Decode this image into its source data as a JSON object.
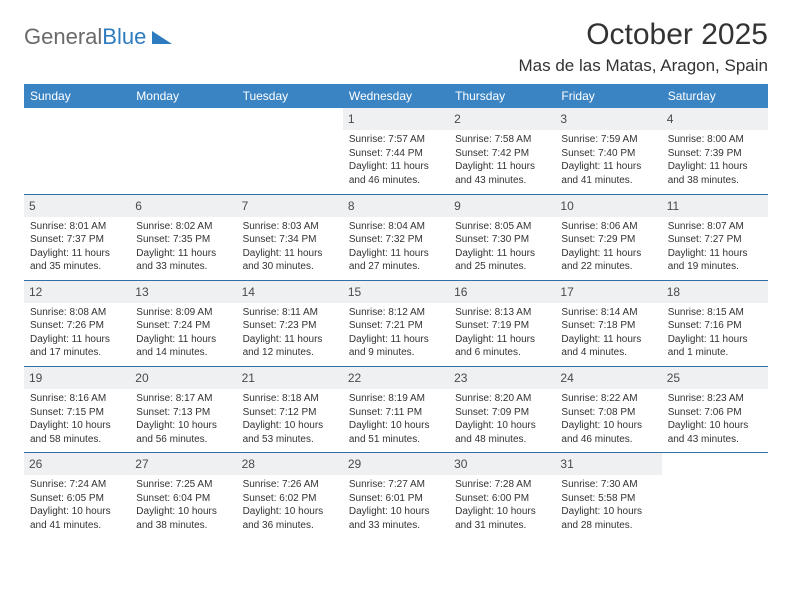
{
  "logo": {
    "text_gray": "General",
    "text_blue": "Blue"
  },
  "header": {
    "month_title": "October 2025",
    "location": "Mas de las Matas, Aragon, Spain"
  },
  "colors": {
    "header_bg": "#3b84c4",
    "header_text": "#ffffff",
    "row_divider": "#2f6fa6",
    "daynum_bg": "#eef0f2",
    "body_text": "#333333"
  },
  "day_headers": [
    "Sunday",
    "Monday",
    "Tuesday",
    "Wednesday",
    "Thursday",
    "Friday",
    "Saturday"
  ],
  "weeks": [
    [
      {
        "blank": true
      },
      {
        "blank": true
      },
      {
        "blank": true
      },
      {
        "day": "1",
        "sunrise": "Sunrise: 7:57 AM",
        "sunset": "Sunset: 7:44 PM",
        "dl1": "Daylight: 11 hours",
        "dl2": "and 46 minutes."
      },
      {
        "day": "2",
        "sunrise": "Sunrise: 7:58 AM",
        "sunset": "Sunset: 7:42 PM",
        "dl1": "Daylight: 11 hours",
        "dl2": "and 43 minutes."
      },
      {
        "day": "3",
        "sunrise": "Sunrise: 7:59 AM",
        "sunset": "Sunset: 7:40 PM",
        "dl1": "Daylight: 11 hours",
        "dl2": "and 41 minutes."
      },
      {
        "day": "4",
        "sunrise": "Sunrise: 8:00 AM",
        "sunset": "Sunset: 7:39 PM",
        "dl1": "Daylight: 11 hours",
        "dl2": "and 38 minutes."
      }
    ],
    [
      {
        "day": "5",
        "sunrise": "Sunrise: 8:01 AM",
        "sunset": "Sunset: 7:37 PM",
        "dl1": "Daylight: 11 hours",
        "dl2": "and 35 minutes."
      },
      {
        "day": "6",
        "sunrise": "Sunrise: 8:02 AM",
        "sunset": "Sunset: 7:35 PM",
        "dl1": "Daylight: 11 hours",
        "dl2": "and 33 minutes."
      },
      {
        "day": "7",
        "sunrise": "Sunrise: 8:03 AM",
        "sunset": "Sunset: 7:34 PM",
        "dl1": "Daylight: 11 hours",
        "dl2": "and 30 minutes."
      },
      {
        "day": "8",
        "sunrise": "Sunrise: 8:04 AM",
        "sunset": "Sunset: 7:32 PM",
        "dl1": "Daylight: 11 hours",
        "dl2": "and 27 minutes."
      },
      {
        "day": "9",
        "sunrise": "Sunrise: 8:05 AM",
        "sunset": "Sunset: 7:30 PM",
        "dl1": "Daylight: 11 hours",
        "dl2": "and 25 minutes."
      },
      {
        "day": "10",
        "sunrise": "Sunrise: 8:06 AM",
        "sunset": "Sunset: 7:29 PM",
        "dl1": "Daylight: 11 hours",
        "dl2": "and 22 minutes."
      },
      {
        "day": "11",
        "sunrise": "Sunrise: 8:07 AM",
        "sunset": "Sunset: 7:27 PM",
        "dl1": "Daylight: 11 hours",
        "dl2": "and 19 minutes."
      }
    ],
    [
      {
        "day": "12",
        "sunrise": "Sunrise: 8:08 AM",
        "sunset": "Sunset: 7:26 PM",
        "dl1": "Daylight: 11 hours",
        "dl2": "and 17 minutes."
      },
      {
        "day": "13",
        "sunrise": "Sunrise: 8:09 AM",
        "sunset": "Sunset: 7:24 PM",
        "dl1": "Daylight: 11 hours",
        "dl2": "and 14 minutes."
      },
      {
        "day": "14",
        "sunrise": "Sunrise: 8:11 AM",
        "sunset": "Sunset: 7:23 PM",
        "dl1": "Daylight: 11 hours",
        "dl2": "and 12 minutes."
      },
      {
        "day": "15",
        "sunrise": "Sunrise: 8:12 AM",
        "sunset": "Sunset: 7:21 PM",
        "dl1": "Daylight: 11 hours",
        "dl2": "and 9 minutes."
      },
      {
        "day": "16",
        "sunrise": "Sunrise: 8:13 AM",
        "sunset": "Sunset: 7:19 PM",
        "dl1": "Daylight: 11 hours",
        "dl2": "and 6 minutes."
      },
      {
        "day": "17",
        "sunrise": "Sunrise: 8:14 AM",
        "sunset": "Sunset: 7:18 PM",
        "dl1": "Daylight: 11 hours",
        "dl2": "and 4 minutes."
      },
      {
        "day": "18",
        "sunrise": "Sunrise: 8:15 AM",
        "sunset": "Sunset: 7:16 PM",
        "dl1": "Daylight: 11 hours",
        "dl2": "and 1 minute."
      }
    ],
    [
      {
        "day": "19",
        "sunrise": "Sunrise: 8:16 AM",
        "sunset": "Sunset: 7:15 PM",
        "dl1": "Daylight: 10 hours",
        "dl2": "and 58 minutes."
      },
      {
        "day": "20",
        "sunrise": "Sunrise: 8:17 AM",
        "sunset": "Sunset: 7:13 PM",
        "dl1": "Daylight: 10 hours",
        "dl2": "and 56 minutes."
      },
      {
        "day": "21",
        "sunrise": "Sunrise: 8:18 AM",
        "sunset": "Sunset: 7:12 PM",
        "dl1": "Daylight: 10 hours",
        "dl2": "and 53 minutes."
      },
      {
        "day": "22",
        "sunrise": "Sunrise: 8:19 AM",
        "sunset": "Sunset: 7:11 PM",
        "dl1": "Daylight: 10 hours",
        "dl2": "and 51 minutes."
      },
      {
        "day": "23",
        "sunrise": "Sunrise: 8:20 AM",
        "sunset": "Sunset: 7:09 PM",
        "dl1": "Daylight: 10 hours",
        "dl2": "and 48 minutes."
      },
      {
        "day": "24",
        "sunrise": "Sunrise: 8:22 AM",
        "sunset": "Sunset: 7:08 PM",
        "dl1": "Daylight: 10 hours",
        "dl2": "and 46 minutes."
      },
      {
        "day": "25",
        "sunrise": "Sunrise: 8:23 AM",
        "sunset": "Sunset: 7:06 PM",
        "dl1": "Daylight: 10 hours",
        "dl2": "and 43 minutes."
      }
    ],
    [
      {
        "day": "26",
        "sunrise": "Sunrise: 7:24 AM",
        "sunset": "Sunset: 6:05 PM",
        "dl1": "Daylight: 10 hours",
        "dl2": "and 41 minutes."
      },
      {
        "day": "27",
        "sunrise": "Sunrise: 7:25 AM",
        "sunset": "Sunset: 6:04 PM",
        "dl1": "Daylight: 10 hours",
        "dl2": "and 38 minutes."
      },
      {
        "day": "28",
        "sunrise": "Sunrise: 7:26 AM",
        "sunset": "Sunset: 6:02 PM",
        "dl1": "Daylight: 10 hours",
        "dl2": "and 36 minutes."
      },
      {
        "day": "29",
        "sunrise": "Sunrise: 7:27 AM",
        "sunset": "Sunset: 6:01 PM",
        "dl1": "Daylight: 10 hours",
        "dl2": "and 33 minutes."
      },
      {
        "day": "30",
        "sunrise": "Sunrise: 7:28 AM",
        "sunset": "Sunset: 6:00 PM",
        "dl1": "Daylight: 10 hours",
        "dl2": "and 31 minutes."
      },
      {
        "day": "31",
        "sunrise": "Sunrise: 7:30 AM",
        "sunset": "Sunset: 5:58 PM",
        "dl1": "Daylight: 10 hours",
        "dl2": "and 28 minutes."
      },
      {
        "blank": true
      }
    ]
  ]
}
